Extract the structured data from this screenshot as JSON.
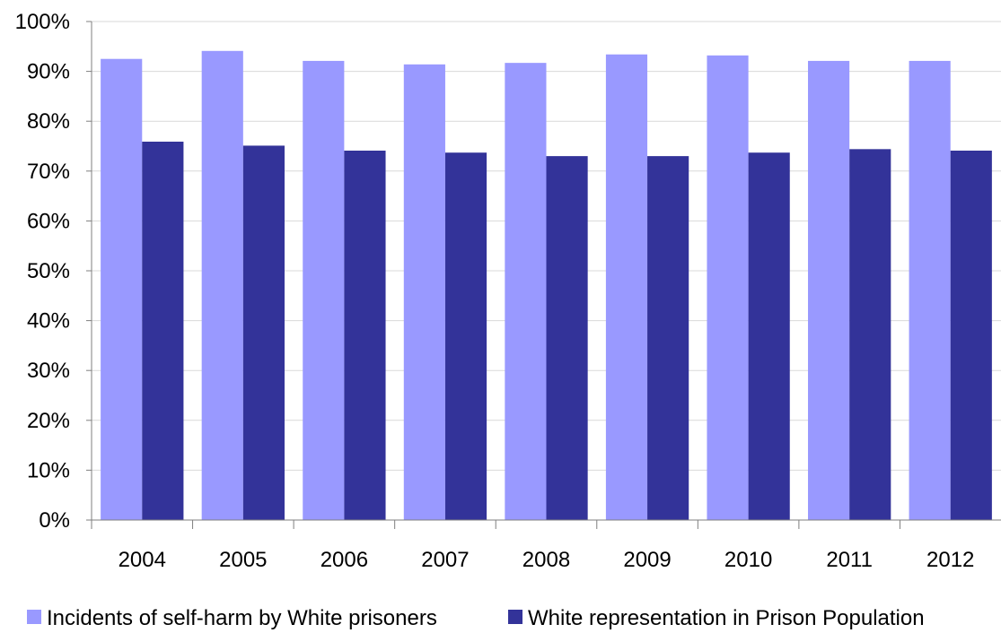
{
  "chart_data": {
    "type": "bar",
    "title": "",
    "xlabel": "",
    "ylabel": "",
    "categories": [
      "2004",
      "2005",
      "2006",
      "2007",
      "2008",
      "2009",
      "2010",
      "2011",
      "2012"
    ],
    "series": [
      {
        "name": "Incidents of self-harm by White prisoners",
        "color": "#9999FF",
        "values": [
          92.5,
          94.1,
          92.1,
          91.4,
          91.7,
          93.4,
          93.2,
          92.1,
          92.1
        ]
      },
      {
        "name": "White representation in Prison Population",
        "color": "#333399",
        "values": [
          75.9,
          75.1,
          74.1,
          73.7,
          73.0,
          73.0,
          73.7,
          74.4,
          74.1
        ]
      }
    ],
    "ylim": [
      0,
      100
    ],
    "yticks": [
      "0%",
      "10%",
      "20%",
      "30%",
      "40%",
      "50%",
      "60%",
      "70%",
      "80%",
      "90%",
      "100%"
    ],
    "grid": true,
    "legend_position": "bottom"
  }
}
